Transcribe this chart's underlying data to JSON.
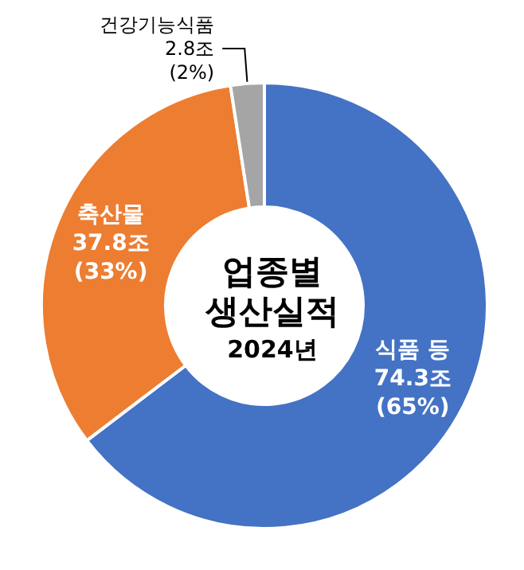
{
  "chart_data": {
    "type": "donut",
    "title": "업종별\n생산실적",
    "subtitle": "2024년",
    "categories": [
      "식품 등",
      "축산물",
      "건강기능식품"
    ],
    "values": [
      74.3,
      37.8,
      2.8
    ],
    "value_labels": [
      "74.3조\n(65%)",
      "37.8조\n(33%)",
      "2.8조\n(2%)"
    ],
    "colors": [
      "#4472c4",
      "#ed7d31",
      "#a5a5a5"
    ],
    "legend": false
  }
}
